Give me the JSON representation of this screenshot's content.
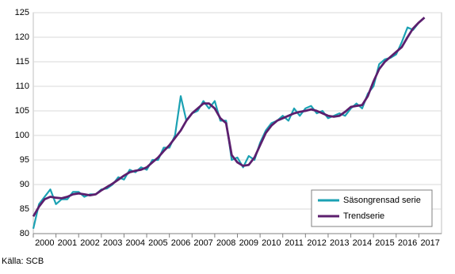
{
  "chart_data": {
    "type": "line",
    "x": [
      2000,
      2000.25,
      2000.5,
      2000.75,
      2001,
      2001.25,
      2001.5,
      2001.75,
      2002,
      2002.25,
      2002.5,
      2002.75,
      2003,
      2003.25,
      2003.5,
      2003.75,
      2004,
      2004.25,
      2004.5,
      2004.75,
      2005,
      2005.25,
      2005.5,
      2005.75,
      2006,
      2006.25,
      2006.5,
      2006.75,
      2007,
      2007.25,
      2007.5,
      2007.75,
      2008,
      2008.25,
      2008.5,
      2008.75,
      2009,
      2009.25,
      2009.5,
      2009.75,
      2010,
      2010.25,
      2010.5,
      2010.75,
      2011,
      2011.25,
      2011.5,
      2011.75,
      2012,
      2012.25,
      2012.5,
      2012.75,
      2013,
      2013.25,
      2013.5,
      2013.75,
      2014,
      2014.25,
      2014.5,
      2014.75,
      2015,
      2015.25,
      2015.5,
      2015.75,
      2016,
      2016.25,
      2016.5,
      2016.75,
      2017,
      2017.25
    ],
    "series": [
      {
        "name": "Säsongrensad serie",
        "color": "#1ba1b3",
        "values": [
          81,
          86,
          87.5,
          89,
          86,
          87,
          87,
          88.5,
          88.5,
          87.5,
          88,
          88,
          89,
          89.2,
          90,
          91.5,
          91,
          93,
          92.5,
          93.5,
          93,
          95,
          95,
          97.5,
          97.5,
          100,
          108,
          103,
          104.5,
          105,
          107,
          105.5,
          107,
          103,
          103,
          95,
          95.5,
          93.5,
          95.8,
          95,
          98.5,
          101,
          102.5,
          103,
          104,
          103,
          105.5,
          104,
          105.5,
          106,
          104.5,
          105,
          103.5,
          104,
          104.5,
          104,
          105.5,
          106.5,
          105.5,
          108.5,
          110,
          114.5,
          115.5,
          115.8,
          116.5,
          119,
          122,
          121.5,
          123,
          124
        ]
      },
      {
        "name": "Trendserie",
        "color": "#5c1f6e",
        "values": [
          83.5,
          85.5,
          87,
          87.5,
          87.3,
          87.2,
          87.5,
          88,
          88.2,
          88,
          87.8,
          88,
          88.8,
          89.5,
          90.2,
          91,
          91.8,
          92.5,
          92.8,
          93,
          93.5,
          94.5,
          95.5,
          96.8,
          98,
          99.5,
          101,
          103,
          104.5,
          105.5,
          106.5,
          106.5,
          105.5,
          103.5,
          102.5,
          96,
          94.5,
          93.8,
          94,
          95.5,
          98,
          100.5,
          102,
          103,
          103.5,
          104,
          104.5,
          104.8,
          105,
          105.3,
          105,
          104.5,
          104,
          103.8,
          104,
          104.8,
          105.8,
          106,
          106.2,
          108,
          111,
          113.5,
          115,
          116,
          117,
          118,
          120,
          121.8,
          123,
          124
        ]
      }
    ],
    "xlim": [
      2000,
      2018
    ],
    "xticks": [
      2000,
      2001,
      2002,
      2003,
      2004,
      2005,
      2006,
      2007,
      2008,
      2009,
      2010,
      2011,
      2012,
      2013,
      2014,
      2015,
      2016,
      2017
    ],
    "ylim": [
      80,
      125
    ],
    "yticks": [
      80,
      85,
      90,
      95,
      100,
      105,
      110,
      115,
      120,
      125
    ],
    "grid": true,
    "legend": "lower-right",
    "source": "Källa: SCB"
  }
}
